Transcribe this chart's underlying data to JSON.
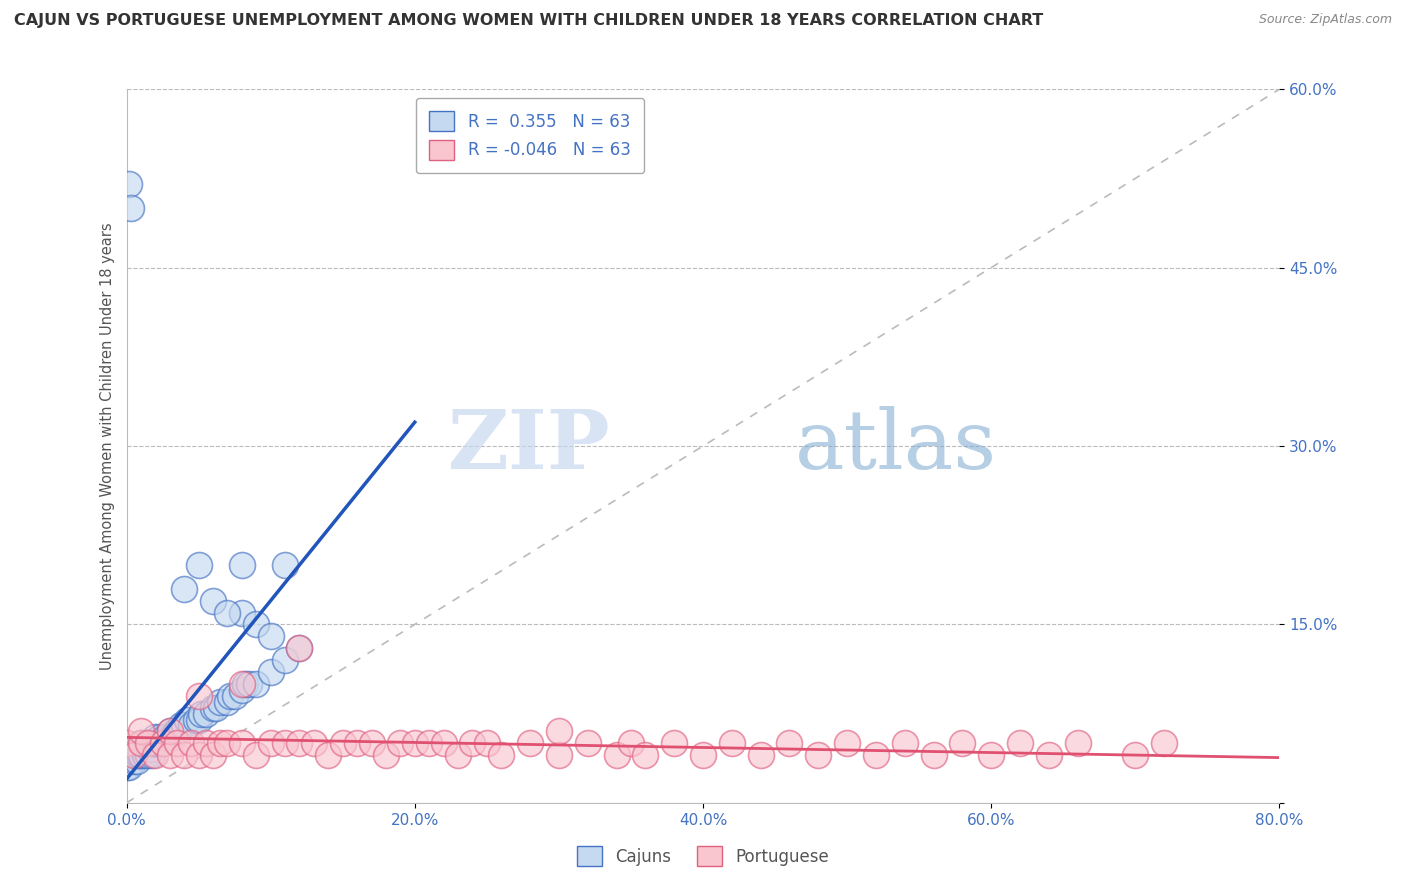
{
  "title": "CAJUN VS PORTUGUESE UNEMPLOYMENT AMONG WOMEN WITH CHILDREN UNDER 18 YEARS CORRELATION CHART",
  "source": "Source: ZipAtlas.com",
  "ylabel": "Unemployment Among Women with Children Under 18 years",
  "cajun_R": 0.355,
  "portuguese_R": -0.046,
  "N": 63,
  "xlim": [
    0.0,
    0.8
  ],
  "ylim": [
    0.0,
    0.6
  ],
  "xticks": [
    0.0,
    0.2,
    0.4,
    0.6,
    0.8
  ],
  "yticks": [
    0.0,
    0.15,
    0.3,
    0.45,
    0.6
  ],
  "xticklabels": [
    "0.0%",
    "20.0%",
    "40.0%",
    "60.0%",
    "80.0%"
  ],
  "yticklabels": [
    "",
    "15.0%",
    "30.0%",
    "45.0%",
    "60.0%"
  ],
  "cajun_face_color": "#c5d9f0",
  "cajun_edge_color": "#4472c4",
  "portuguese_face_color": "#f9c6d0",
  "portuguese_edge_color": "#e06080",
  "cajun_line_color": "#2255bb",
  "portuguese_line_color": "#e05070",
  "diagonal_color": "#bbbbbb",
  "watermark_zip": "ZIP",
  "watermark_atlas": "atlas",
  "background_color": "#ffffff",
  "legend_box_color": "#ffffff",
  "legend_border_color": "#aaaaaa",
  "title_color": "#333333",
  "tick_color": "#4472c4",
  "cajun_x": [
    0.0,
    0.002,
    0.003,
    0.004,
    0.005,
    0.006,
    0.007,
    0.008,
    0.008,
    0.009,
    0.01,
    0.01,
    0.012,
    0.013,
    0.014,
    0.015,
    0.016,
    0.017,
    0.018,
    0.019,
    0.02,
    0.02,
    0.022,
    0.023,
    0.025,
    0.027,
    0.03,
    0.03,
    0.032,
    0.034,
    0.036,
    0.038,
    0.04,
    0.042,
    0.045,
    0.048,
    0.05,
    0.052,
    0.055,
    0.06,
    0.062,
    0.065,
    0.07,
    0.072,
    0.075,
    0.08,
    0.082,
    0.085,
    0.09,
    0.1,
    0.002,
    0.003,
    0.11,
    0.05,
    0.12,
    0.08,
    0.09,
    0.1,
    0.11,
    0.04,
    0.06,
    0.07,
    0.08
  ],
  "cajun_y": [
    0.03,
    0.03,
    0.04,
    0.04,
    0.035,
    0.04,
    0.035,
    0.04,
    0.045,
    0.04,
    0.04,
    0.05,
    0.045,
    0.04,
    0.05,
    0.04,
    0.045,
    0.05,
    0.04,
    0.05,
    0.05,
    0.055,
    0.05,
    0.055,
    0.05,
    0.055,
    0.055,
    0.06,
    0.055,
    0.06,
    0.06,
    0.065,
    0.065,
    0.07,
    0.065,
    0.07,
    0.07,
    0.075,
    0.075,
    0.08,
    0.08,
    0.085,
    0.085,
    0.09,
    0.09,
    0.095,
    0.1,
    0.1,
    0.1,
    0.11,
    0.52,
    0.5,
    0.12,
    0.2,
    0.13,
    0.16,
    0.15,
    0.14,
    0.2,
    0.18,
    0.17,
    0.16,
    0.2
  ],
  "portuguese_x": [
    0.0,
    0.005,
    0.01,
    0.01,
    0.015,
    0.02,
    0.025,
    0.03,
    0.03,
    0.035,
    0.04,
    0.045,
    0.05,
    0.055,
    0.06,
    0.065,
    0.07,
    0.08,
    0.09,
    0.1,
    0.11,
    0.12,
    0.13,
    0.14,
    0.15,
    0.16,
    0.17,
    0.18,
    0.19,
    0.2,
    0.21,
    0.22,
    0.23,
    0.24,
    0.25,
    0.26,
    0.28,
    0.3,
    0.3,
    0.32,
    0.34,
    0.35,
    0.36,
    0.38,
    0.4,
    0.42,
    0.44,
    0.46,
    0.48,
    0.5,
    0.52,
    0.54,
    0.56,
    0.58,
    0.6,
    0.62,
    0.64,
    0.66,
    0.7,
    0.72,
    0.05,
    0.08,
    0.12
  ],
  "portuguese_y": [
    0.05,
    0.04,
    0.05,
    0.06,
    0.05,
    0.04,
    0.05,
    0.04,
    0.06,
    0.05,
    0.04,
    0.05,
    0.04,
    0.05,
    0.04,
    0.05,
    0.05,
    0.05,
    0.04,
    0.05,
    0.05,
    0.05,
    0.05,
    0.04,
    0.05,
    0.05,
    0.05,
    0.04,
    0.05,
    0.05,
    0.05,
    0.05,
    0.04,
    0.05,
    0.05,
    0.04,
    0.05,
    0.04,
    0.06,
    0.05,
    0.04,
    0.05,
    0.04,
    0.05,
    0.04,
    0.05,
    0.04,
    0.05,
    0.04,
    0.05,
    0.04,
    0.05,
    0.04,
    0.05,
    0.04,
    0.05,
    0.04,
    0.05,
    0.04,
    0.05,
    0.09,
    0.1,
    0.13
  ],
  "cajun_trend_x0": 0.0,
  "cajun_trend_y0": 0.02,
  "cajun_trend_x1": 0.2,
  "cajun_trend_y1": 0.32,
  "port_trend_x0": 0.0,
  "port_trend_y0": 0.055,
  "port_trend_x1": 0.8,
  "port_trend_y1": 0.038
}
